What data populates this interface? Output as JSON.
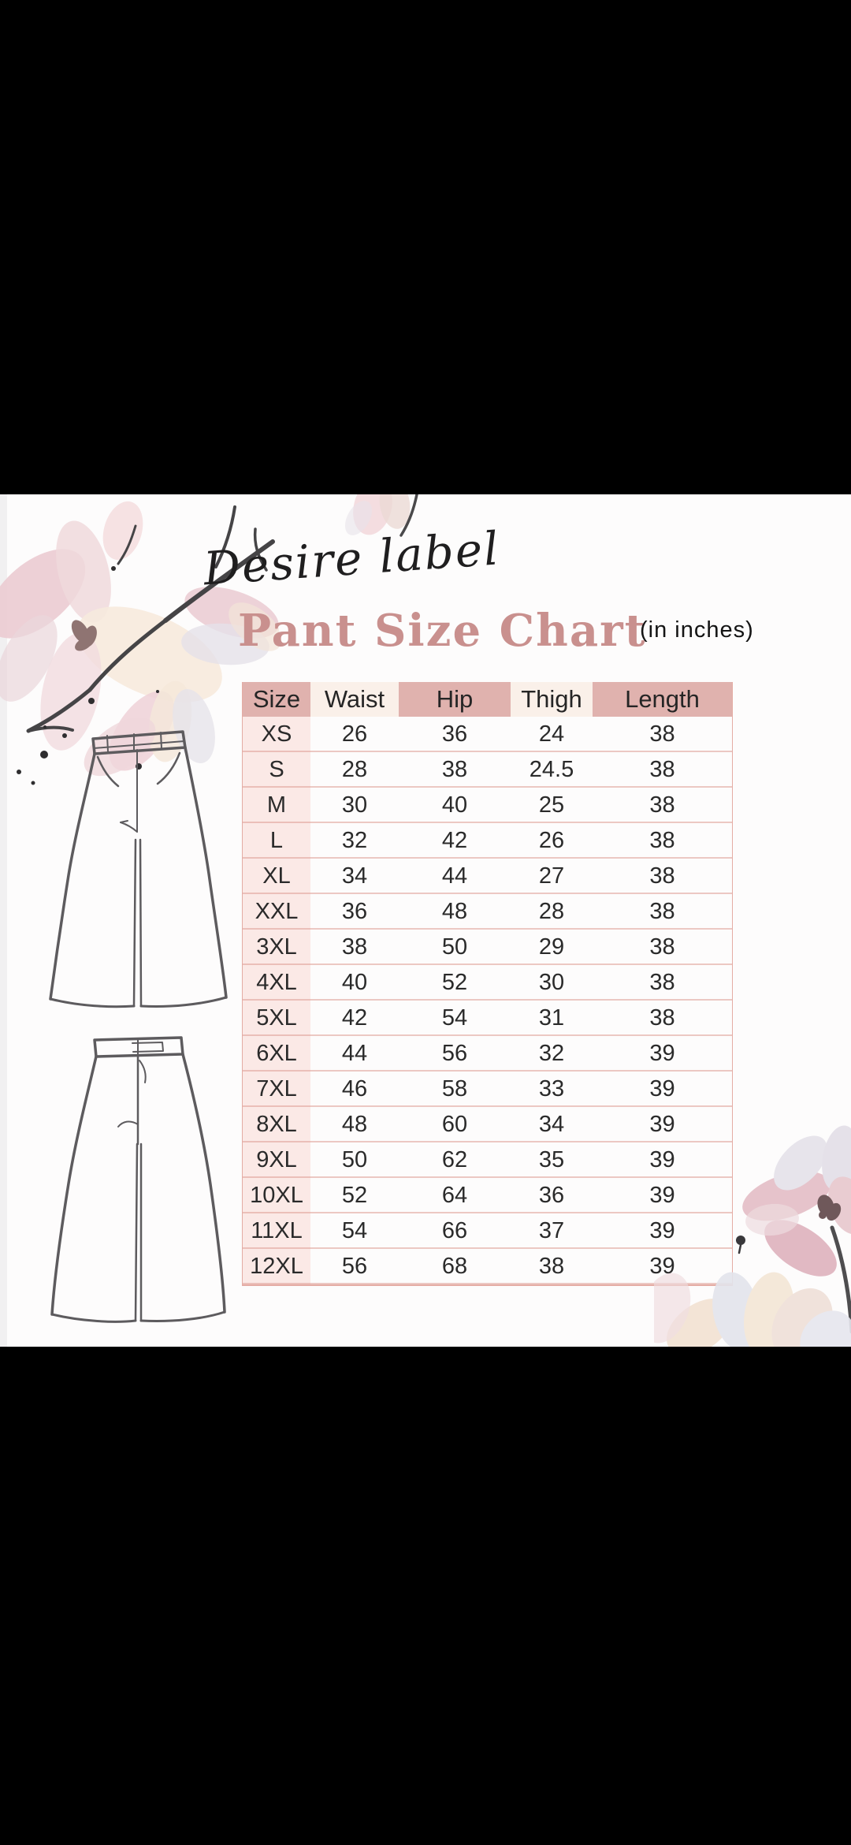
{
  "brand": "Desire label",
  "title": "Pant Size Chart",
  "units_note": "(in inches)",
  "table": {
    "headers": [
      "Size",
      "Waist",
      "Hip",
      "Thigh",
      "Length"
    ],
    "rows": [
      [
        "XS",
        "26",
        "36",
        "24",
        "38"
      ],
      [
        "S",
        "28",
        "38",
        "24.5",
        "38"
      ],
      [
        "M",
        "30",
        "40",
        "25",
        "38"
      ],
      [
        "L",
        "32",
        "42",
        "26",
        "38"
      ],
      [
        "XL",
        "34",
        "44",
        "27",
        "38"
      ],
      [
        "XXL",
        "36",
        "48",
        "28",
        "38"
      ],
      [
        "3XL",
        "38",
        "50",
        "29",
        "38"
      ],
      [
        "4XL",
        "40",
        "52",
        "30",
        "38"
      ],
      [
        "5XL",
        "42",
        "54",
        "31",
        "38"
      ],
      [
        "6XL",
        "44",
        "56",
        "32",
        "39"
      ],
      [
        "7XL",
        "46",
        "58",
        "33",
        "39"
      ],
      [
        "8XL",
        "48",
        "60",
        "34",
        "39"
      ],
      [
        "9XL",
        "50",
        "62",
        "35",
        "39"
      ],
      [
        "10XL",
        "52",
        "64",
        "36",
        "39"
      ],
      [
        "11XL",
        "54",
        "66",
        "37",
        "39"
      ],
      [
        "12XL",
        "56",
        "68",
        "38",
        "39"
      ]
    ]
  },
  "decorations": {
    "top_left": "watercolor-magnolia-branch",
    "top_center": "magnolia-bud",
    "bottom_right": "watercolor-flowers",
    "sketch_top": "pants-front-sketch",
    "sketch_bottom": "pants-back-sketch"
  },
  "colors": {
    "letterbox": "#000000",
    "card": "#fdfcfc",
    "title": "#c9908e",
    "header_pink": "#e0b2ae",
    "header_cream": "#faf0e9",
    "size_column": "#fbe9e6",
    "row_border": "#de9c93",
    "text": "#2a2a2a",
    "sketch_stroke": "#5d5b5e"
  }
}
